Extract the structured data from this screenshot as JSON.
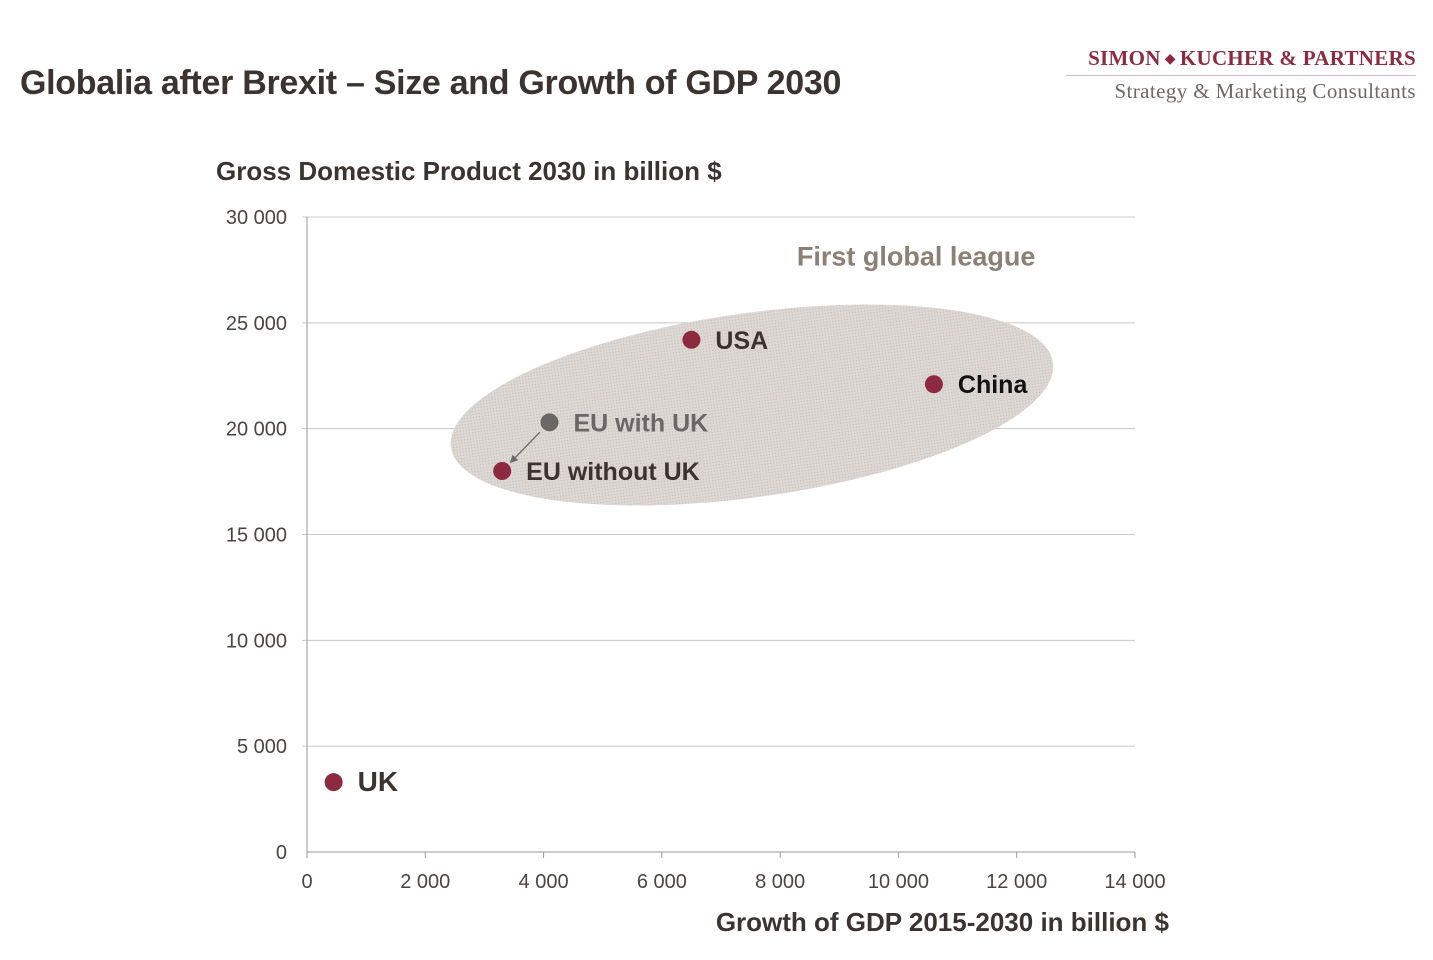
{
  "title": "Globalia after Brexit – Size and Growth of GDP 2030",
  "logo": {
    "name_left": "SIMON",
    "separator": "◆",
    "name_right": "KUCHER & PARTNERS",
    "tagline": "Strategy & Marketing Consultants"
  },
  "colors": {
    "point": "#8e2a40",
    "eu_with_uk": "#6b6766",
    "league_label": "#8c7f74",
    "ellipse_fill": "#dcd7d3",
    "grid": "#c8c8c8",
    "text_dark": "#3a3330"
  },
  "chart_data": {
    "type": "scatter",
    "ylabel": "Gross Domestic Product 2030 in billion $",
    "xlabel": "Growth of GDP 2015-2030 in billion $",
    "xlim": [
      0,
      14000
    ],
    "ylim": [
      0,
      30000
    ],
    "x_ticks": [
      0,
      2000,
      4000,
      6000,
      8000,
      10000,
      12000,
      14000
    ],
    "x_tick_labels": [
      "0",
      "2 000",
      "4 000",
      "6 000",
      "8 000",
      "10 000",
      "12 000",
      "14 000"
    ],
    "y_ticks": [
      0,
      5000,
      10000,
      15000,
      20000,
      25000,
      30000
    ],
    "y_tick_labels": [
      "0",
      "5 000",
      "10 000",
      "15 000",
      "20 000",
      "25 000",
      "30 000"
    ],
    "grid": "horizontal",
    "points": [
      {
        "label": "USA",
        "x": 6500,
        "y": 24200,
        "emphasis": "primary"
      },
      {
        "label": "China",
        "x": 10600,
        "y": 22100,
        "emphasis": "primary"
      },
      {
        "label": "EU with UK",
        "x": 4100,
        "y": 20300,
        "emphasis": "secondary"
      },
      {
        "label": "EU without UK",
        "x": 3300,
        "y": 18000,
        "emphasis": "primary"
      },
      {
        "label": "UK",
        "x": 450,
        "y": 3300,
        "emphasis": "primary"
      }
    ],
    "arrow": {
      "from": "EU with UK",
      "to": "EU without UK"
    },
    "annotations": [
      {
        "text": "First global league",
        "x": 10300,
        "y": 27700
      }
    ],
    "region": {
      "label": "First global league",
      "members": [
        "USA",
        "China",
        "EU with UK",
        "EU without UK"
      ]
    }
  }
}
